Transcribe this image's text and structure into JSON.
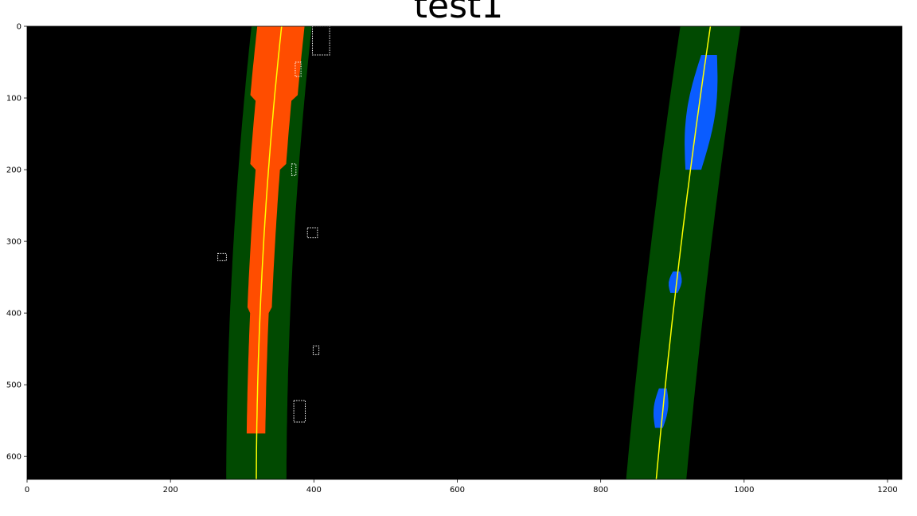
{
  "figure": {
    "title": "test1"
  },
  "axes": {
    "x_ticks": [
      0,
      200,
      400,
      600,
      800,
      1000,
      1200
    ],
    "y_ticks": [
      0,
      100,
      200,
      300,
      400,
      500,
      600
    ],
    "x_range": [
      0,
      1220
    ],
    "y_range": [
      632,
      0
    ],
    "y_inverted": true
  },
  "image": {
    "background_color": "#000000",
    "lane_window_color": "#014a01",
    "left_lane_pixel_color": "#ff4d00",
    "right_lane_pixel_color": "#0a5cff",
    "noise_pixel_color": "#ffffff",
    "fit_line_color": "#ffff00"
  }
}
